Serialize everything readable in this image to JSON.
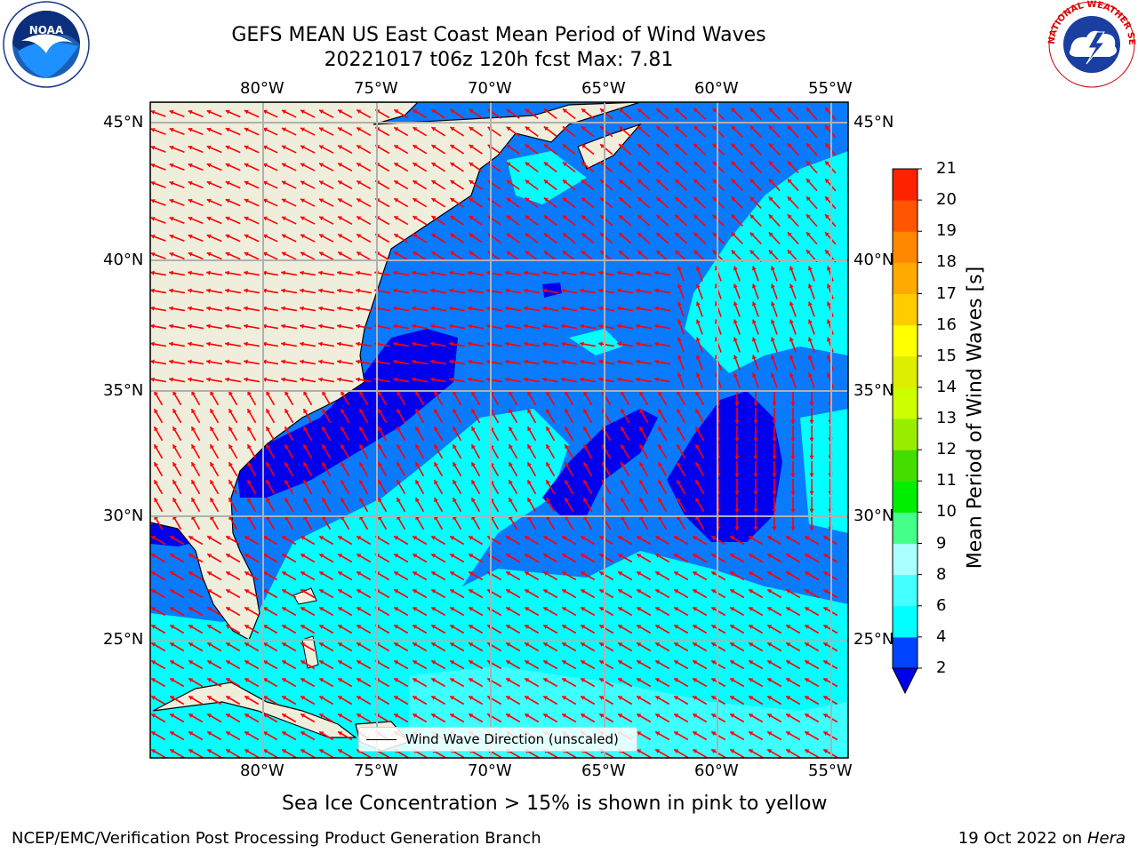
{
  "header": {
    "title_line1": "GEFS MEAN US East Coast Mean Period of Wind Waves",
    "title_line2": "20221017 t06z 120h fcst   Max: 7.81"
  },
  "map": {
    "lon_labels": [
      "80°W",
      "75°W",
      "70°W",
      "65°W",
      "60°W",
      "55°W"
    ],
    "lat_labels": [
      "45°N",
      "40°N",
      "35°N",
      "30°N",
      "25°N"
    ],
    "legend_label": "Wind Wave Direction (unscaled)",
    "arrow_color": "#ff0000",
    "land_color": "#efeedd"
  },
  "colorbar": {
    "label": "Mean Period of Wind Waves [s]",
    "ticks": [
      "2",
      "4",
      "6",
      "8",
      "9",
      "10",
      "11",
      "12",
      "13",
      "14",
      "15",
      "16",
      "17",
      "18",
      "19",
      "20",
      "21"
    ],
    "colors": [
      "#0044ff",
      "#00ffff",
      "#44ffff",
      "#aaffff",
      "#44ff88",
      "#00ee00",
      "#44dd00",
      "#99ee00",
      "#ccff00",
      "#ddee00",
      "#ffff00",
      "#ffcc00",
      "#ffaa00",
      "#ff8800",
      "#ff5500",
      "#ff2200"
    ],
    "extend_min_color": "#0000ee"
  },
  "sea_ice_note": "Sea Ice Concentration > 15% is shown in pink to yellow",
  "footer": {
    "left": "NCEP/EMC/Verification Post Processing Product Generation Branch",
    "right_date": "19 Oct 2022 on",
    "right_host": "Hera"
  },
  "logos": {
    "noaa_text": "NOAA",
    "nws_text": "NATIONAL WEATHER SERVICE"
  }
}
